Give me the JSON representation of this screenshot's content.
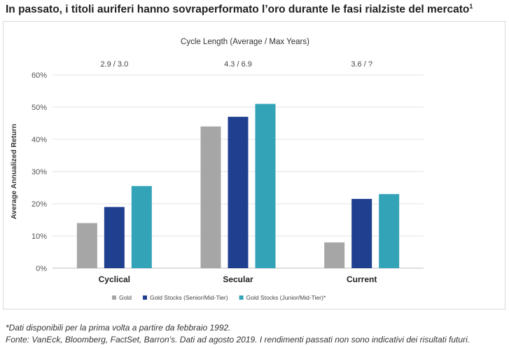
{
  "headline": "In passato, i titoli auriferi hanno sovraperformato l’oro durante le fasi rialziste del mercato",
  "headline_sup": "1",
  "footnotes": {
    "line1": "*Dati disponibili per la prima volta a partire da febbraio 1992.",
    "line2": "Fonte: VanEck, Bloomberg, FactSet, Barron’s. Dati ad agosto 2019. I rendimenti passati non sono indicativi dei risultati futuri."
  },
  "chart_data": {
    "type": "bar",
    "title": "Cycle Length (Average / Max Years)",
    "cycle_lengths": [
      "2.9 / 3.0",
      "4.3 / 6.9",
      "3.6 / ?"
    ],
    "categories": [
      "Cyclical",
      "Secular",
      "Current"
    ],
    "ylabel": "Average Annualized Return",
    "ylim": [
      0,
      60
    ],
    "yticks": [
      "0%",
      "10%",
      "20%",
      "30%",
      "40%",
      "50%",
      "60%"
    ],
    "grid": true,
    "legend_position": "bottom",
    "series": [
      {
        "name": "Gold",
        "values": [
          14,
          44,
          8
        ],
        "color": "#a6a6a6"
      },
      {
        "name": "Gold Stocks (Senior/Mid-Tier)",
        "values": [
          19,
          47,
          21.5
        ],
        "color": "#1f3f8f"
      },
      {
        "name": "Gold Stocks (Junior/Mid-Tier)*",
        "values": [
          25.5,
          51,
          23
        ],
        "color": "#33a3b8"
      }
    ]
  }
}
